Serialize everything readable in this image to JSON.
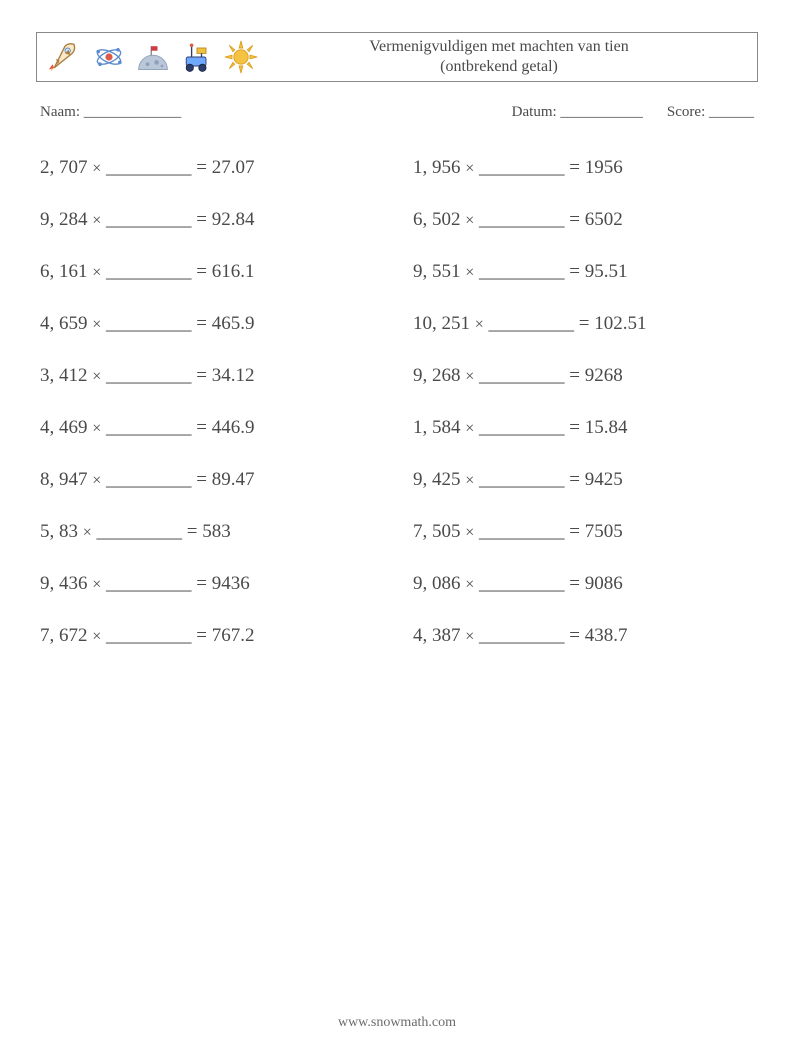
{
  "header": {
    "title_line1": "Vermenigvuldigen met machten van tien",
    "title_line2": "(ontbrekend getal)",
    "icon_colors": {
      "rocket_body": "#fde9c9",
      "rocket_stroke": "#a97e3f",
      "rocket_flame1": "#f5a94c",
      "rocket_flame2": "#e85a3e",
      "satellite_stroke": "#5b8bd0",
      "satellite_dot": "#d95b49",
      "moon_fill": "#b9c7d9",
      "moon_flag": "#d13a43",
      "rover_body": "#6fa8ff",
      "rover_wheel": "#2c3e70",
      "rover_solar": "#f0c040",
      "sun_fill": "#f6c242",
      "sun_stroke": "#d9a020"
    }
  },
  "info": {
    "name_label": "Naam:",
    "date_label": "Datum:",
    "score_label": "Score:",
    "name_blank": "_____________",
    "date_blank": "___________",
    "score_blank": "______"
  },
  "blank": "_________",
  "problems_left": [
    {
      "a": "2, 707",
      "r": "27.07"
    },
    {
      "a": "9, 284",
      "r": "92.84"
    },
    {
      "a": "6, 161",
      "r": "616.1"
    },
    {
      "a": "4, 659",
      "r": "465.9"
    },
    {
      "a": "3, 412",
      "r": "34.12"
    },
    {
      "a": "4, 469",
      "r": "446.9"
    },
    {
      "a": "8, 947",
      "r": "89.47"
    },
    {
      "a": "5, 83",
      "r": "583"
    },
    {
      "a": "9, 436",
      "r": "9436"
    },
    {
      "a": "7, 672",
      "r": "767.2"
    }
  ],
  "problems_right": [
    {
      "a": "1, 956",
      "r": "1956"
    },
    {
      "a": "6, 502",
      "r": "6502"
    },
    {
      "a": "9, 551",
      "r": "95.51"
    },
    {
      "a": "10, 251",
      "r": "102.51"
    },
    {
      "a": "9, 268",
      "r": "9268"
    },
    {
      "a": "1, 584",
      "r": "15.84"
    },
    {
      "a": "9, 425",
      "r": "9425"
    },
    {
      "a": "7, 505",
      "r": "7505"
    },
    {
      "a": "9, 086",
      "r": "9086"
    },
    {
      "a": "4, 387",
      "r": "438.7"
    }
  ],
  "footer": {
    "url": "www.snowmath.com"
  }
}
